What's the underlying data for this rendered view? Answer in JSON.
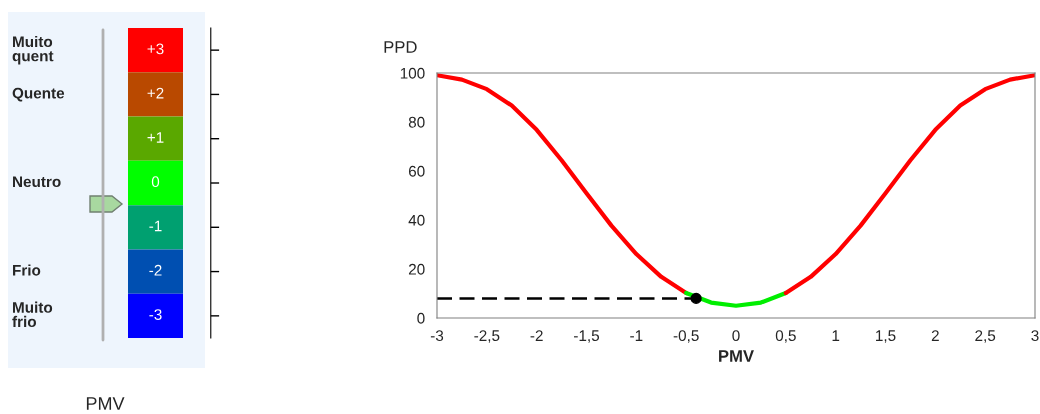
{
  "chart_data": [
    {
      "type": "heatmap",
      "title": "PMV",
      "categories": [
        null
      ],
      "y_categories": [
        "Muito\nquent",
        "Quente",
        null,
        "Neutro",
        null,
        "Frio",
        "Muito\nfrio"
      ],
      "cells": [
        [
          3
        ],
        [
          2
        ],
        [
          1
        ],
        [
          0
        ],
        [
          -1
        ],
        [
          -2
        ],
        [
          -3
        ]
      ],
      "cell_labels": [
        [
          "+3"
        ],
        [
          "+2"
        ],
        [
          "+1"
        ],
        [
          "0"
        ],
        [
          "-1"
        ],
        [
          "-2"
        ],
        [
          "-3"
        ]
      ],
      "colors": [
        "#ff0000",
        "#b84a00",
        "#5aa800",
        "#00ff00",
        "#00a070",
        "#0050b0",
        "#0000ff"
      ]
    },
    {
      "type": "line",
      "xlabel": "PMV",
      "ylabel": "PPD",
      "xlim": [
        -3,
        3
      ],
      "ylim": [
        0,
        100
      ],
      "xticks": [
        -3,
        {
          "value": -2.5,
          "label": "-2,5"
        },
        -2,
        {
          "value": -1.5,
          "label": "-1,5"
        },
        -1,
        {
          "value": -0.5,
          "label": "-0,5"
        },
        0,
        {
          "value": 0.5,
          "label": "0,5"
        },
        1,
        {
          "value": 1.5,
          "label": "1,5"
        },
        2,
        {
          "value": 2.5,
          "label": "2,5"
        },
        3
      ],
      "yticks": [
        0,
        20,
        40,
        60,
        80,
        100
      ],
      "grid": false,
      "legend": false,
      "series": [
        {
          "color": "#ff0000",
          "x": [
            -3,
            -2.75,
            -2.5,
            -2.25,
            -2,
            -1.75,
            -1.5,
            -1.25,
            -1,
            -0.75,
            -0.5
          ],
          "values": [
            99.1,
            97.3,
            93.4,
            86.7,
            76.8,
            64.4,
            50.9,
            37.7,
            26.1,
            16.8,
            10.2
          ]
        },
        {
          "color": "#00ee00",
          "x": [
            -0.5,
            -0.25,
            0,
            0.25,
            0.5
          ],
          "values": [
            10.2,
            6.3,
            5,
            6.3,
            10.2
          ]
        },
        {
          "color": "#ff0000",
          "x": [
            0.5,
            0.75,
            1,
            1.25,
            1.5,
            1.75,
            2,
            2.25,
            2.5,
            2.75,
            3
          ],
          "values": [
            10.2,
            16.8,
            26.1,
            37.7,
            50.9,
            64.4,
            76.8,
            86.7,
            93.4,
            97.3,
            99.1
          ]
        },
        {
          "color": "#000000",
          "line_style": "dashed",
          "x": [
            -3,
            -0.4
          ],
          "values": [
            8,
            8
          ]
        },
        {
          "type": "scatter",
          "color": "#000000",
          "marker": "circle",
          "x": [
            -0.4
          ],
          "values": [
            8
          ]
        }
      ]
    }
  ]
}
